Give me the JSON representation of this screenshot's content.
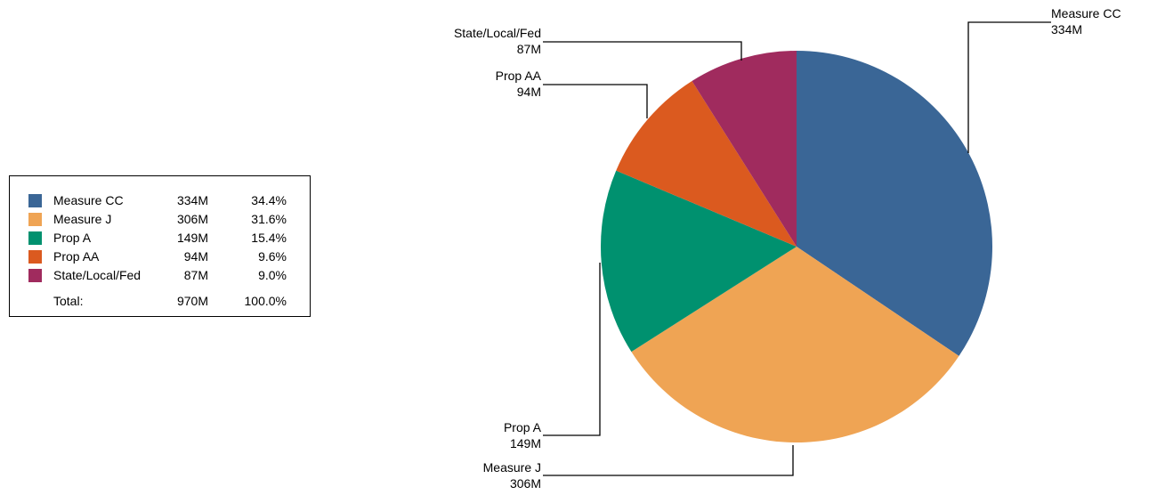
{
  "chart_data": {
    "type": "pie",
    "title": "",
    "categories": [
      "Measure CC",
      "Measure J",
      "Prop A",
      "Prop AA",
      "State/Local/Fed"
    ],
    "values": [
      334,
      306,
      149,
      94,
      87
    ],
    "value_labels": [
      "334M",
      "306M",
      "149M",
      "94M",
      "87M"
    ],
    "percent_labels": [
      "34.4%",
      "31.6%",
      "15.4%",
      "9.6%",
      "9.0%"
    ],
    "colors": [
      "#3a6696",
      "#efa454",
      "#00916f",
      "#db5a1f",
      "#a02b5e"
    ],
    "total_label": "Total:",
    "total_value": "970M",
    "total_percent": "100.0%",
    "legend_position": "left"
  }
}
